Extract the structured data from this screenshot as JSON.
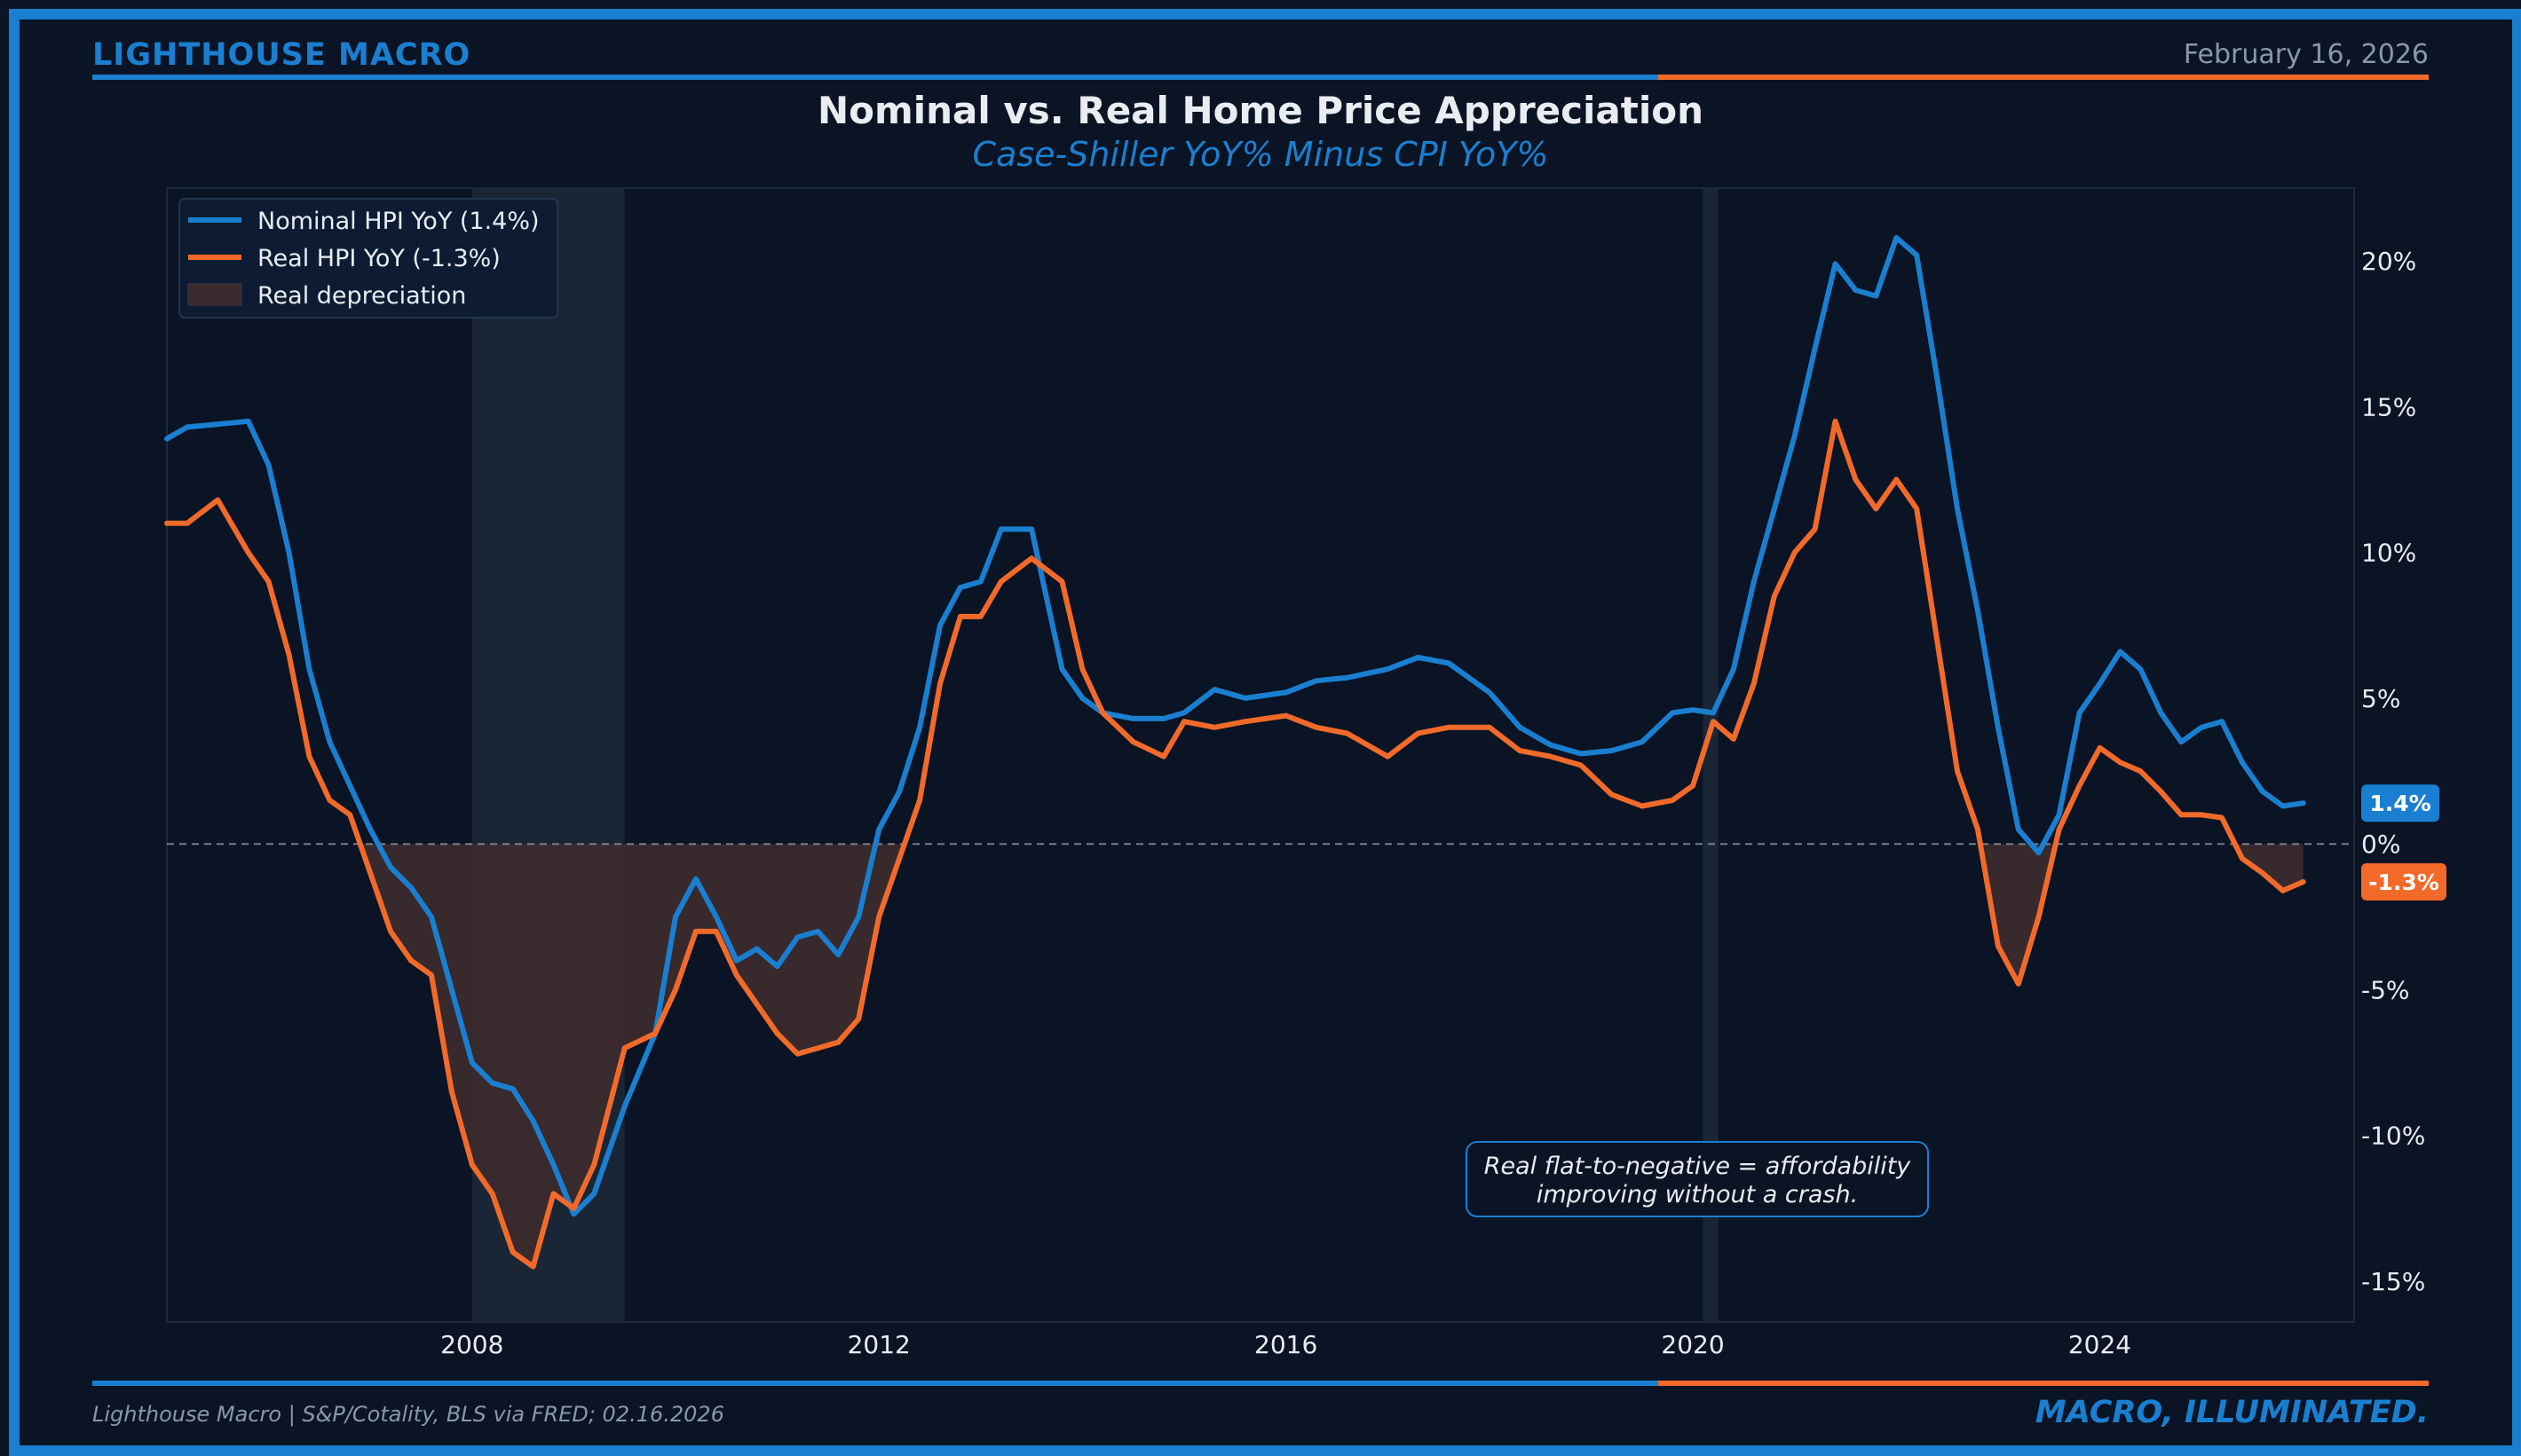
{
  "header": {
    "brand": "LIGHTHOUSE MACRO",
    "date": "February 16, 2026",
    "title": "Nominal vs. Real Home Price Appreciation",
    "subtitle": "Case-Shiller YoY% Minus CPI YoY%"
  },
  "footer": {
    "source": "Lighthouse Macro | S&P/Cotality, BLS via FRED; 02.16.2026",
    "tagline": "MACRO, ILLUMINATED."
  },
  "colors": {
    "background": "#0a1424",
    "nominal": "#1a7fd0",
    "real": "#f26a2a",
    "depreciation_fill": "#3b2a2e",
    "recession_shade": "#1a2636",
    "text": "#e9edf2",
    "muted": "#8a97a8"
  },
  "chart_data": {
    "type": "line",
    "title": "Nominal vs. Real Home Price Appreciation",
    "subtitle": "Case-Shiller YoY% Minus CPI YoY%",
    "xlabel": "",
    "ylabel": "",
    "x_range": [
      2005.0,
      2026.5
    ],
    "xticks": [
      2008,
      2012,
      2016,
      2020,
      2024
    ],
    "ylim": [
      -16.4,
      22.5
    ],
    "yticks": [
      -15,
      -10,
      -5,
      0,
      5,
      10,
      15,
      20
    ],
    "ytick_labels": [
      "-15%",
      "-10%",
      "-5%",
      "0%",
      "5%",
      "10%",
      "15%",
      "20%"
    ],
    "y_axis_side": "right",
    "grid": false,
    "zero_line": true,
    "legend_position": "top-left",
    "legend": [
      "Nominal HPI YoY (1.4%)",
      "Real HPI YoY (-1.3%)",
      "Real depreciation"
    ],
    "shaded_periods": [
      {
        "start": 2008.0,
        "end": 2009.5
      },
      {
        "start": 2020.1,
        "end": 2020.25
      }
    ],
    "annotation": {
      "text_line1": "Real flat-to-negative = affordability",
      "text_line2": "improving without a crash."
    },
    "end_labels": {
      "nominal": "1.4%",
      "real": "-1.3%"
    },
    "series": [
      {
        "name": "Nominal HPI YoY (1.4%)",
        "color": "#1a7fd0",
        "x": [
          2005.0,
          2005.2,
          2005.5,
          2005.8,
          2006.0,
          2006.2,
          2006.4,
          2006.6,
          2006.8,
          2007.0,
          2007.2,
          2007.4,
          2007.6,
          2007.8,
          2008.0,
          2008.2,
          2008.4,
          2008.6,
          2008.8,
          2009.0,
          2009.2,
          2009.5,
          2009.8,
          2010.0,
          2010.2,
          2010.4,
          2010.6,
          2010.8,
          2011.0,
          2011.2,
          2011.4,
          2011.6,
          2011.8,
          2012.0,
          2012.2,
          2012.4,
          2012.6,
          2012.8,
          2013.0,
          2013.2,
          2013.5,
          2013.8,
          2014.0,
          2014.2,
          2014.5,
          2014.8,
          2015.0,
          2015.3,
          2015.6,
          2016.0,
          2016.3,
          2016.6,
          2017.0,
          2017.3,
          2017.6,
          2018.0,
          2018.3,
          2018.6,
          2018.9,
          2019.2,
          2019.5,
          2019.8,
          2020.0,
          2020.2,
          2020.4,
          2020.6,
          2020.8,
          2021.0,
          2021.2,
          2021.4,
          2021.6,
          2021.8,
          2022.0,
          2022.2,
          2022.4,
          2022.6,
          2022.8,
          2023.0,
          2023.2,
          2023.4,
          2023.6,
          2023.8,
          2024.0,
          2024.2,
          2024.4,
          2024.6,
          2024.8,
          2025.0,
          2025.2,
          2025.4,
          2025.6,
          2025.8,
          2026.0
        ],
        "y": [
          13.9,
          14.3,
          14.4,
          14.5,
          13.0,
          10.0,
          6.0,
          3.5,
          2.0,
          0.5,
          -0.8,
          -1.5,
          -2.5,
          -5.0,
          -7.5,
          -8.2,
          -8.4,
          -9.5,
          -11.0,
          -12.7,
          -12.0,
          -9.0,
          -6.5,
          -2.5,
          -1.2,
          -2.5,
          -4.0,
          -3.6,
          -4.2,
          -3.2,
          -3.0,
          -3.8,
          -2.5,
          0.5,
          1.8,
          4.0,
          7.5,
          8.8,
          9.0,
          10.8,
          10.8,
          6.0,
          5.0,
          4.5,
          4.3,
          4.3,
          4.5,
          5.3,
          5.0,
          5.2,
          5.6,
          5.7,
          6.0,
          6.4,
          6.2,
          5.2,
          4.0,
          3.4,
          3.1,
          3.2,
          3.5,
          4.5,
          4.6,
          4.5,
          6.0,
          9.0,
          11.5,
          14.0,
          17.0,
          19.9,
          19.0,
          18.8,
          20.8,
          20.2,
          16.0,
          11.5,
          8.0,
          4.0,
          0.5,
          -0.3,
          1.0,
          4.5,
          5.5,
          6.6,
          6.0,
          4.5,
          3.5,
          4.0,
          4.2,
          2.8,
          1.8,
          1.3,
          1.4
        ]
      },
      {
        "name": "Real HPI YoY (-1.3%)",
        "color": "#f26a2a",
        "x": [
          2005.0,
          2005.2,
          2005.5,
          2005.8,
          2006.0,
          2006.2,
          2006.4,
          2006.6,
          2006.8,
          2007.0,
          2007.2,
          2007.4,
          2007.6,
          2007.8,
          2008.0,
          2008.2,
          2008.4,
          2008.6,
          2008.8,
          2009.0,
          2009.2,
          2009.5,
          2009.8,
          2010.0,
          2010.2,
          2010.4,
          2010.6,
          2010.8,
          2011.0,
          2011.2,
          2011.4,
          2011.6,
          2011.8,
          2012.0,
          2012.2,
          2012.4,
          2012.6,
          2012.8,
          2013.0,
          2013.2,
          2013.5,
          2013.8,
          2014.0,
          2014.2,
          2014.5,
          2014.8,
          2015.0,
          2015.3,
          2015.6,
          2016.0,
          2016.3,
          2016.6,
          2017.0,
          2017.3,
          2017.6,
          2018.0,
          2018.3,
          2018.6,
          2018.9,
          2019.2,
          2019.5,
          2019.8,
          2020.0,
          2020.2,
          2020.4,
          2020.6,
          2020.8,
          2021.0,
          2021.2,
          2021.4,
          2021.6,
          2021.8,
          2022.0,
          2022.2,
          2022.4,
          2022.6,
          2022.8,
          2023.0,
          2023.2,
          2023.4,
          2023.6,
          2023.8,
          2024.0,
          2024.2,
          2024.4,
          2024.6,
          2024.8,
          2025.0,
          2025.2,
          2025.4,
          2025.6,
          2025.8,
          2026.0
        ],
        "y": [
          11.0,
          11.0,
          11.8,
          10.0,
          9.0,
          6.5,
          3.0,
          1.5,
          1.0,
          -1.0,
          -3.0,
          -4.0,
          -4.5,
          -8.5,
          -11.0,
          -12.0,
          -14.0,
          -14.5,
          -12.0,
          -12.5,
          -11.0,
          -7.0,
          -6.5,
          -5.0,
          -3.0,
          -3.0,
          -4.5,
          -5.5,
          -6.5,
          -7.2,
          -7.0,
          -6.8,
          -6.0,
          -2.5,
          -0.5,
          1.5,
          5.5,
          7.8,
          7.8,
          9.0,
          9.8,
          9.0,
          6.0,
          4.5,
          3.5,
          3.0,
          4.2,
          4.0,
          4.2,
          4.4,
          4.0,
          3.8,
          3.0,
          3.8,
          4.0,
          4.0,
          3.2,
          3.0,
          2.7,
          1.7,
          1.3,
          1.5,
          2.0,
          4.2,
          3.6,
          5.5,
          8.5,
          10.0,
          10.8,
          14.5,
          12.5,
          11.5,
          12.5,
          11.5,
          7.0,
          2.5,
          0.5,
          -3.5,
          -4.8,
          -2.5,
          0.5,
          2.0,
          3.3,
          2.8,
          2.5,
          1.8,
          1.0,
          1.0,
          0.9,
          -0.5,
          -1.0,
          -1.6,
          -1.3
        ]
      }
    ]
  }
}
